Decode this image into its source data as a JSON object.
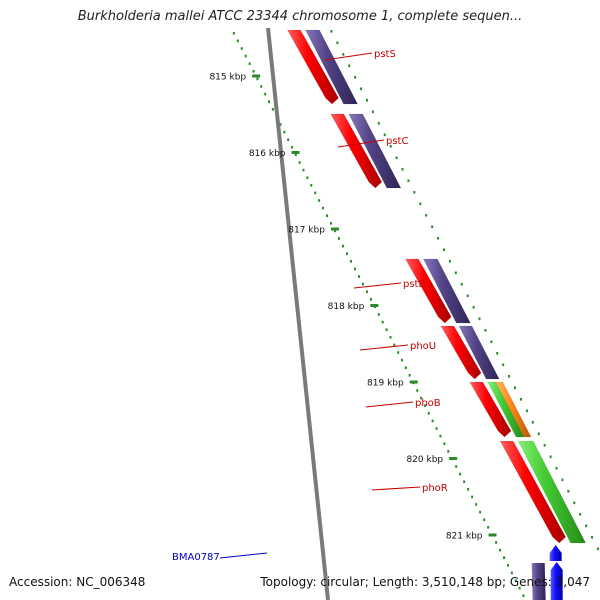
{
  "title": "Burkholderia mallei ATCC 23344 chromosome 1, complete sequen...",
  "footer": {
    "accession": "Accession: NC_006348",
    "summary": "Topology: circular; Length: 3,510,148 bp; Genes: 3,047"
  },
  "colors": {
    "backbone": "#7a7a7a",
    "tick": "#2a8a2a",
    "ruler_label": "#111111",
    "gene_label": "#c80000",
    "highlight_label": "#0000c8",
    "cds_red": "#ff0000",
    "cds_purple": "#554488",
    "cds_green": "#44cc33",
    "cds_orange": "#ff8a1a",
    "cds_blue": "#1111ff"
  },
  "ruler": [
    {
      "label": "815 kbp"
    },
    {
      "label": "816 kbp"
    },
    {
      "label": "817 kbp"
    },
    {
      "label": "818 kbp"
    },
    {
      "label": "819 kbp"
    },
    {
      "label": "820 kbp"
    },
    {
      "label": "821 kbp"
    }
  ],
  "genes": [
    {
      "name": "pstS",
      "colors": [
        "cds_red",
        "cds_purple"
      ]
    },
    {
      "name": "pstC",
      "colors": [
        "cds_red",
        "cds_purple"
      ]
    },
    {
      "name": "pstB",
      "colors": [
        "cds_red",
        "cds_purple"
      ]
    },
    {
      "name": "phoU",
      "colors": [
        "cds_red",
        "cds_purple"
      ]
    },
    {
      "name": "phoB",
      "colors": [
        "cds_red",
        "cds_green",
        "cds_orange"
      ]
    },
    {
      "name": "phoR",
      "colors": [
        "cds_red",
        "cds_green"
      ]
    },
    {
      "name": "BMA0787",
      "colors": [
        "cds_purple",
        "cds_blue",
        "cds_blue"
      ],
      "highlight": true
    }
  ]
}
